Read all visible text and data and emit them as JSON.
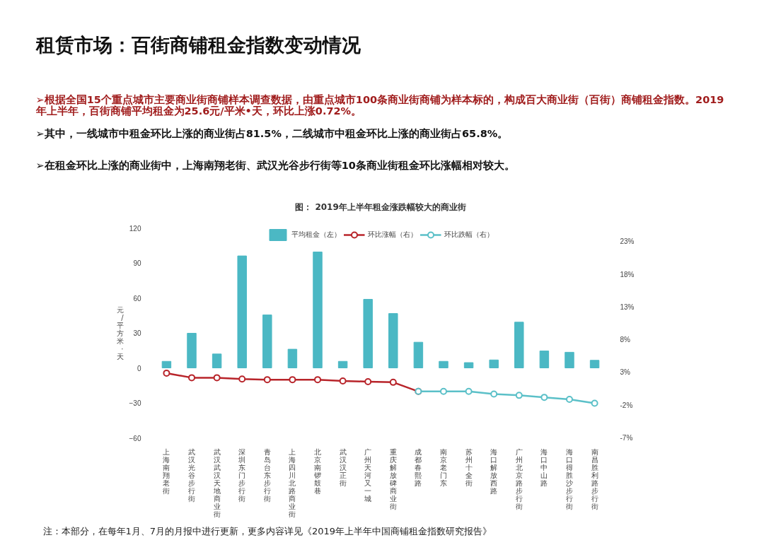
{
  "chart_data": {
    "type": "bar",
    "title": "租赁市场：百街商铺租金指数变动情况",
    "subtitle": "图： 2019年上半年租金涨跌幅较大的商业街",
    "annotations": [
      "➢根据全国15个重点城市主要商业街商铺样本调查数据，由重点城市100条商业街商铺为样本标的，构成百大商业街（百街）商铺租金指数。2019年上半年，百街商铺平均租金为25.6元/平米•天，环比上涨0.72%。",
      "➢其中，一线城市中租金环比上涨的商业街占81.5%，二线城市中租金环比上涨的商业街占65.8%。",
      "➢在租金环比上涨的商业街中，上海南翔老街、武汉光谷步行街等10条商业街租金环比涨幅相对较大。",
      "注：本部分，在每年1月、7月的月报中进行更新，更多内容详见《2019年上半年中国商铺租金指数研究报告》"
    ],
    "ylabel": "元/平方米·天",
    "categories": [
      "上海南翔老街",
      "武汉光谷步行街",
      "武汉武汉天地商业街",
      "深圳东门步行街",
      "青岛台东步行街",
      "上海四川北路商业街",
      "北京南锣鼓巷",
      "武汉汉正街",
      "广州天河又一城",
      "重庆解放碑商业街",
      "成都春熙路",
      "南京老门东",
      "苏州十全街",
      "海口解放西路",
      "广州北京路步行街",
      "海口中山路",
      "海口得胜沙步行街",
      "南昌胜利路步行街"
    ],
    "series": [
      {
        "name": "平均租金（左）",
        "color": "#4bb8c4",
        "values": [
          5.6,
          29.7,
          11.9,
          96,
          45.4,
          16,
          99.4,
          5.6,
          58.8,
          46.6,
          22,
          5.6,
          4.5,
          6.8,
          39.2,
          14.5,
          13.4,
          6.5
        ]
      },
      {
        "name": "环比涨幅（右）",
        "type": "line",
        "axis": "y2",
        "color": "#b8242a",
        "values": [
          2.9,
          2.2,
          2.2,
          2.0,
          1.9,
          1.9,
          1.9,
          1.7,
          1.6,
          1.5,
          0.1,
          null,
          null,
          null,
          null,
          null,
          null,
          null
        ]
      },
      {
        "name": "环比跌幅（右）",
        "type": "line",
        "axis": "y2",
        "color": "#5bc0c8",
        "values": [
          null,
          null,
          null,
          null,
          null,
          null,
          null,
          null,
          null,
          null,
          0.1,
          0.1,
          0.1,
          -0.3,
          -0.5,
          -0.8,
          -1.1,
          -1.7
        ]
      }
    ],
    "ylim": [
      -60,
      120
    ],
    "yticks": [
      -60,
      -30,
      0,
      30,
      60,
      90,
      120
    ],
    "y2lim": [
      -7,
      25.1
    ],
    "y2ticks": [
      {
        "value": -7,
        "label": "-7%"
      },
      {
        "value": -2,
        "label": "-2%"
      },
      {
        "value": 3,
        "label": "3%"
      },
      {
        "value": 8,
        "label": "8%"
      },
      {
        "value": 13,
        "label": "13%"
      },
      {
        "value": 18,
        "label": "18%"
      },
      {
        "value": 23,
        "label": "23%"
      }
    ],
    "marker": "circle",
    "legend": "top",
    "grid": false
  }
}
